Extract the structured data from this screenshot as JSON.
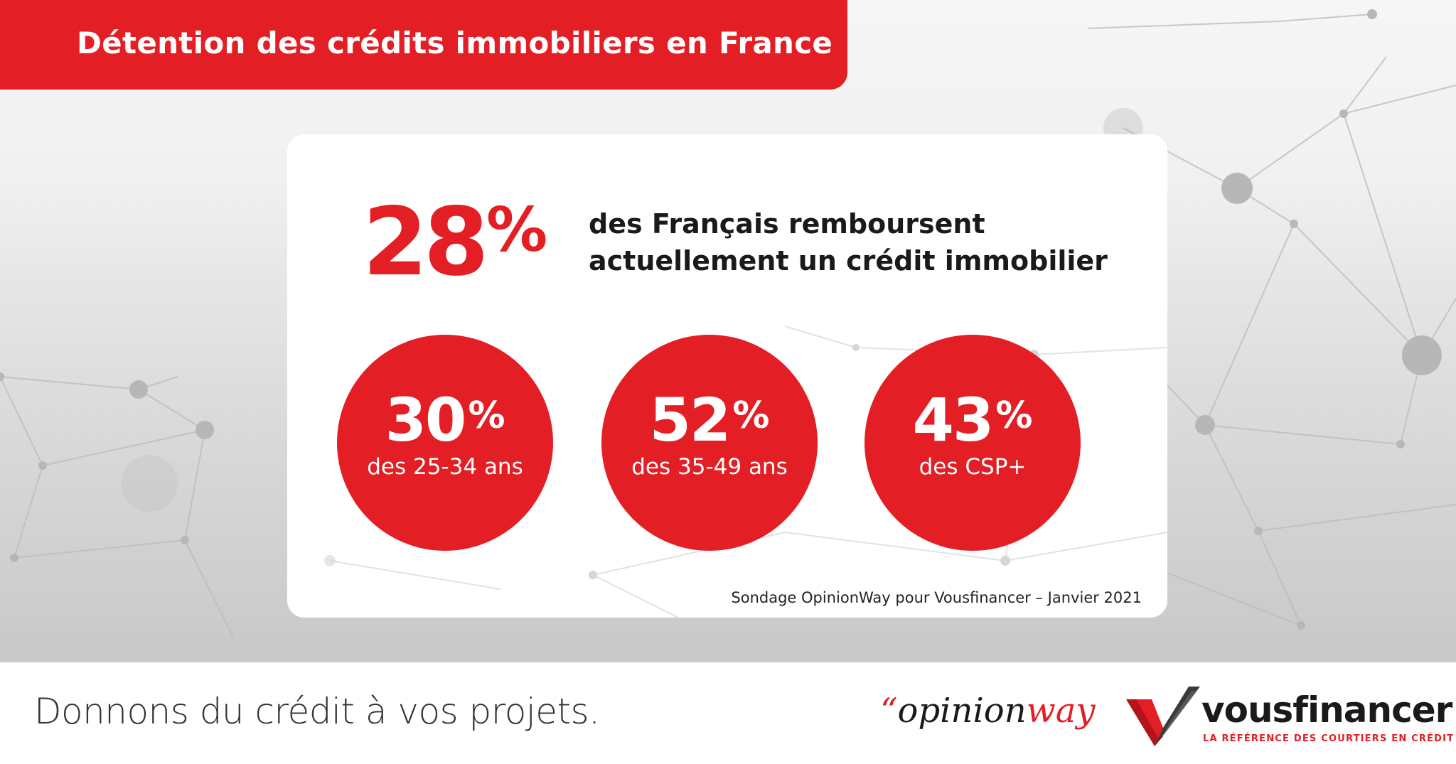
{
  "header": {
    "title": "Détention des crédits immobiliers en France"
  },
  "main": {
    "headline_value": "28",
    "headline_unit": "%",
    "headline_text_line1": "des Français remboursent",
    "headline_text_line2": "actuellement un crédit immobilier",
    "stats": [
      {
        "value": "30",
        "unit": "%",
        "label": "des 25-34 ans"
      },
      {
        "value": "52",
        "unit": "%",
        "label": "des 35-49 ans"
      },
      {
        "value": "43",
        "unit": "%",
        "label": "des CSP+"
      }
    ],
    "source": "Sondage OpinionWay pour Vousfinancer – Janvier 2021"
  },
  "footer": {
    "tagline": "Donnons du crédit à vos projets.",
    "opinionway_quote": "“",
    "opinionway_part1": "opinion",
    "opinionway_part2": "way",
    "vousfinancer_name": "vousfinancer",
    "vousfinancer_tagline": "LA RÉFÉRENCE DES COURTIERS EN CRÉDIT"
  },
  "colors": {
    "accent": "#e31e24",
    "text_dark": "#1a1a1a",
    "background_gray": "#d6d6d6"
  },
  "icons": [
    "network-pattern",
    "vousfinancer-v-logo"
  ]
}
